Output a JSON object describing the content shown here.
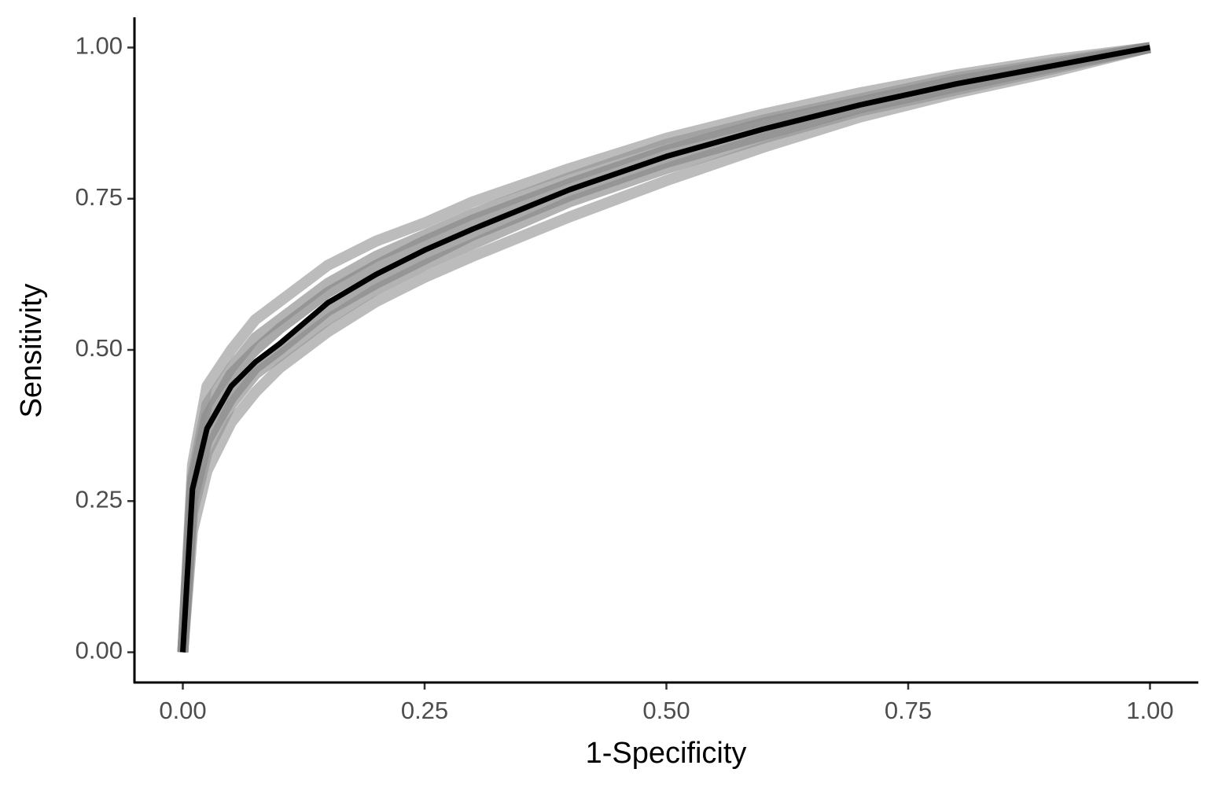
{
  "chart_data": {
    "type": "line",
    "x_label": "1-Specificity",
    "y_label": "Sensitivity",
    "x": [
      0,
      0.01,
      0.025,
      0.05,
      0.075,
      0.1,
      0.15,
      0.2,
      0.25,
      0.3,
      0.4,
      0.5,
      0.6,
      0.7,
      0.8,
      0.9,
      1
    ],
    "series": [
      {
        "color": "#a6a6a6",
        "values": [
          0,
          0.31,
          0.44,
          0.5,
          0.55,
          0.58,
          0.64,
          0.68,
          0.71,
          0.745,
          0.8,
          0.85,
          0.89,
          0.925,
          0.955,
          0.98,
          1
        ]
      },
      {
        "color": "#a6a6a6",
        "values": [
          0,
          0.2,
          0.3,
          0.38,
          0.43,
          0.47,
          0.53,
          0.58,
          0.62,
          0.655,
          0.72,
          0.78,
          0.835,
          0.885,
          0.925,
          0.96,
          1
        ]
      },
      {
        "color": "#999999",
        "values": [
          0,
          0.29,
          0.41,
          0.47,
          0.52,
          0.55,
          0.61,
          0.655,
          0.69,
          0.725,
          0.785,
          0.84,
          0.88,
          0.915,
          0.95,
          0.975,
          1
        ]
      },
      {
        "color": "#999999",
        "values": [
          0,
          0.23,
          0.33,
          0.41,
          0.46,
          0.49,
          0.55,
          0.6,
          0.64,
          0.675,
          0.745,
          0.8,
          0.85,
          0.895,
          0.93,
          0.965,
          1
        ]
      },
      {
        "color": "#8c8c8c",
        "values": [
          0,
          0.28,
          0.39,
          0.46,
          0.5,
          0.535,
          0.595,
          0.64,
          0.68,
          0.715,
          0.775,
          0.83,
          0.875,
          0.91,
          0.945,
          0.972,
          1
        ]
      },
      {
        "color": "#8c8c8c",
        "values": [
          0,
          0.25,
          0.35,
          0.42,
          0.47,
          0.5,
          0.565,
          0.61,
          0.65,
          0.69,
          0.755,
          0.81,
          0.855,
          0.9,
          0.935,
          0.968,
          1
        ]
      },
      {
        "color": "#000000",
        "values": [
          0,
          0.27,
          0.37,
          0.44,
          0.48,
          0.51,
          0.578,
          0.625,
          0.665,
          0.7,
          0.765,
          0.82,
          0.865,
          0.905,
          0.94,
          0.97,
          1
        ]
      }
    ],
    "xlim": [
      -0.05,
      1.05
    ],
    "ylim": [
      -0.05,
      1.05
    ],
    "xticks": [
      {
        "value": 0,
        "label": "0.00"
      },
      {
        "value": 0.25,
        "label": "0.25"
      },
      {
        "value": 0.5,
        "label": "0.50"
      },
      {
        "value": 0.75,
        "label": "0.75"
      },
      {
        "value": 1,
        "label": "1.00"
      }
    ],
    "yticks": [
      {
        "value": 0,
        "label": "0.00"
      },
      {
        "value": 0.25,
        "label": "0.25"
      },
      {
        "value": 0.5,
        "label": "0.50"
      },
      {
        "value": 0.75,
        "label": "0.75"
      },
      {
        "value": 1,
        "label": "1.00"
      }
    ],
    "grid": false
  }
}
